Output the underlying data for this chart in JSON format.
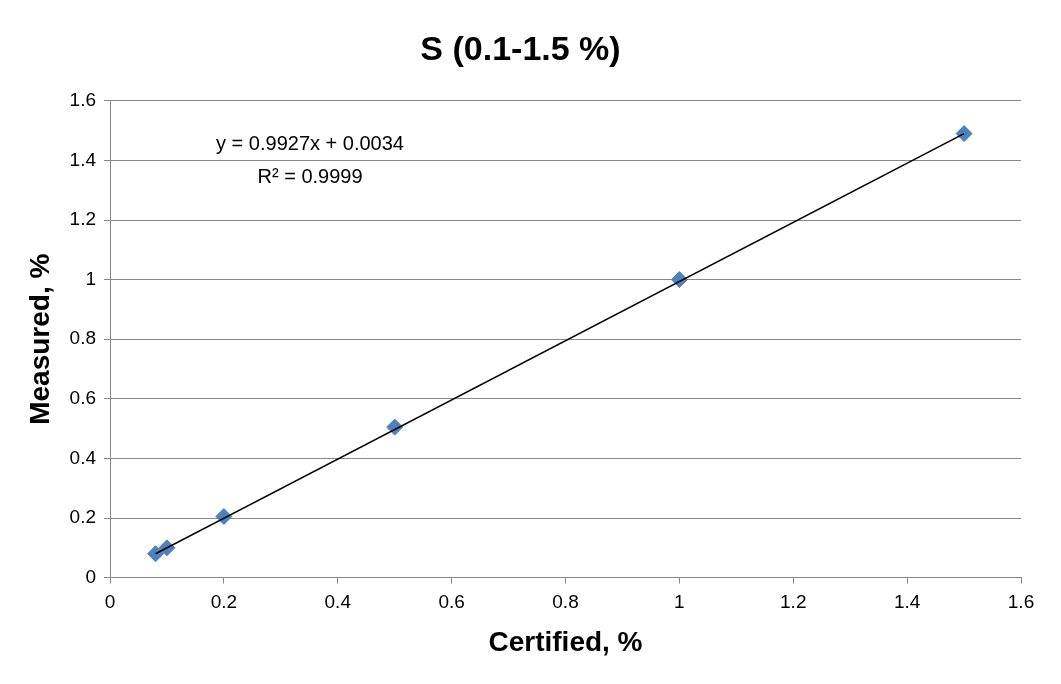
{
  "chart_data": {
    "type": "scatter",
    "title": "S (0.1-1.5 %)",
    "xlabel": "Certified, %",
    "ylabel": "Measured, %",
    "xlim": [
      0,
      1.6
    ],
    "xticks": [
      0,
      0.2,
      0.4,
      0.6,
      0.8,
      1,
      1.2,
      1.4,
      1.6
    ],
    "ylim": [
      0,
      1.6
    ],
    "yticks": [
      0,
      0.2,
      0.4,
      0.6,
      0.8,
      1,
      1.2,
      1.4,
      1.6
    ],
    "grid": "y",
    "legend": false,
    "marker": "diamond",
    "series": [
      {
        "color": "#4f81bd",
        "x": [
          0.08,
          0.1,
          0.2,
          0.5,
          1,
          1.5
        ],
        "values": [
          0.08,
          0.1,
          0.205,
          0.505,
          1.0,
          1.49
        ]
      },
      {
        "type": "line",
        "color": "#000000",
        "marker": "none",
        "x": [
          0.08,
          1.5
        ],
        "values": [
          0.08,
          1.49
        ]
      }
    ],
    "annotations": [
      "y = 0.9927x + 0.0034",
      "R² = 0.9999"
    ]
  }
}
